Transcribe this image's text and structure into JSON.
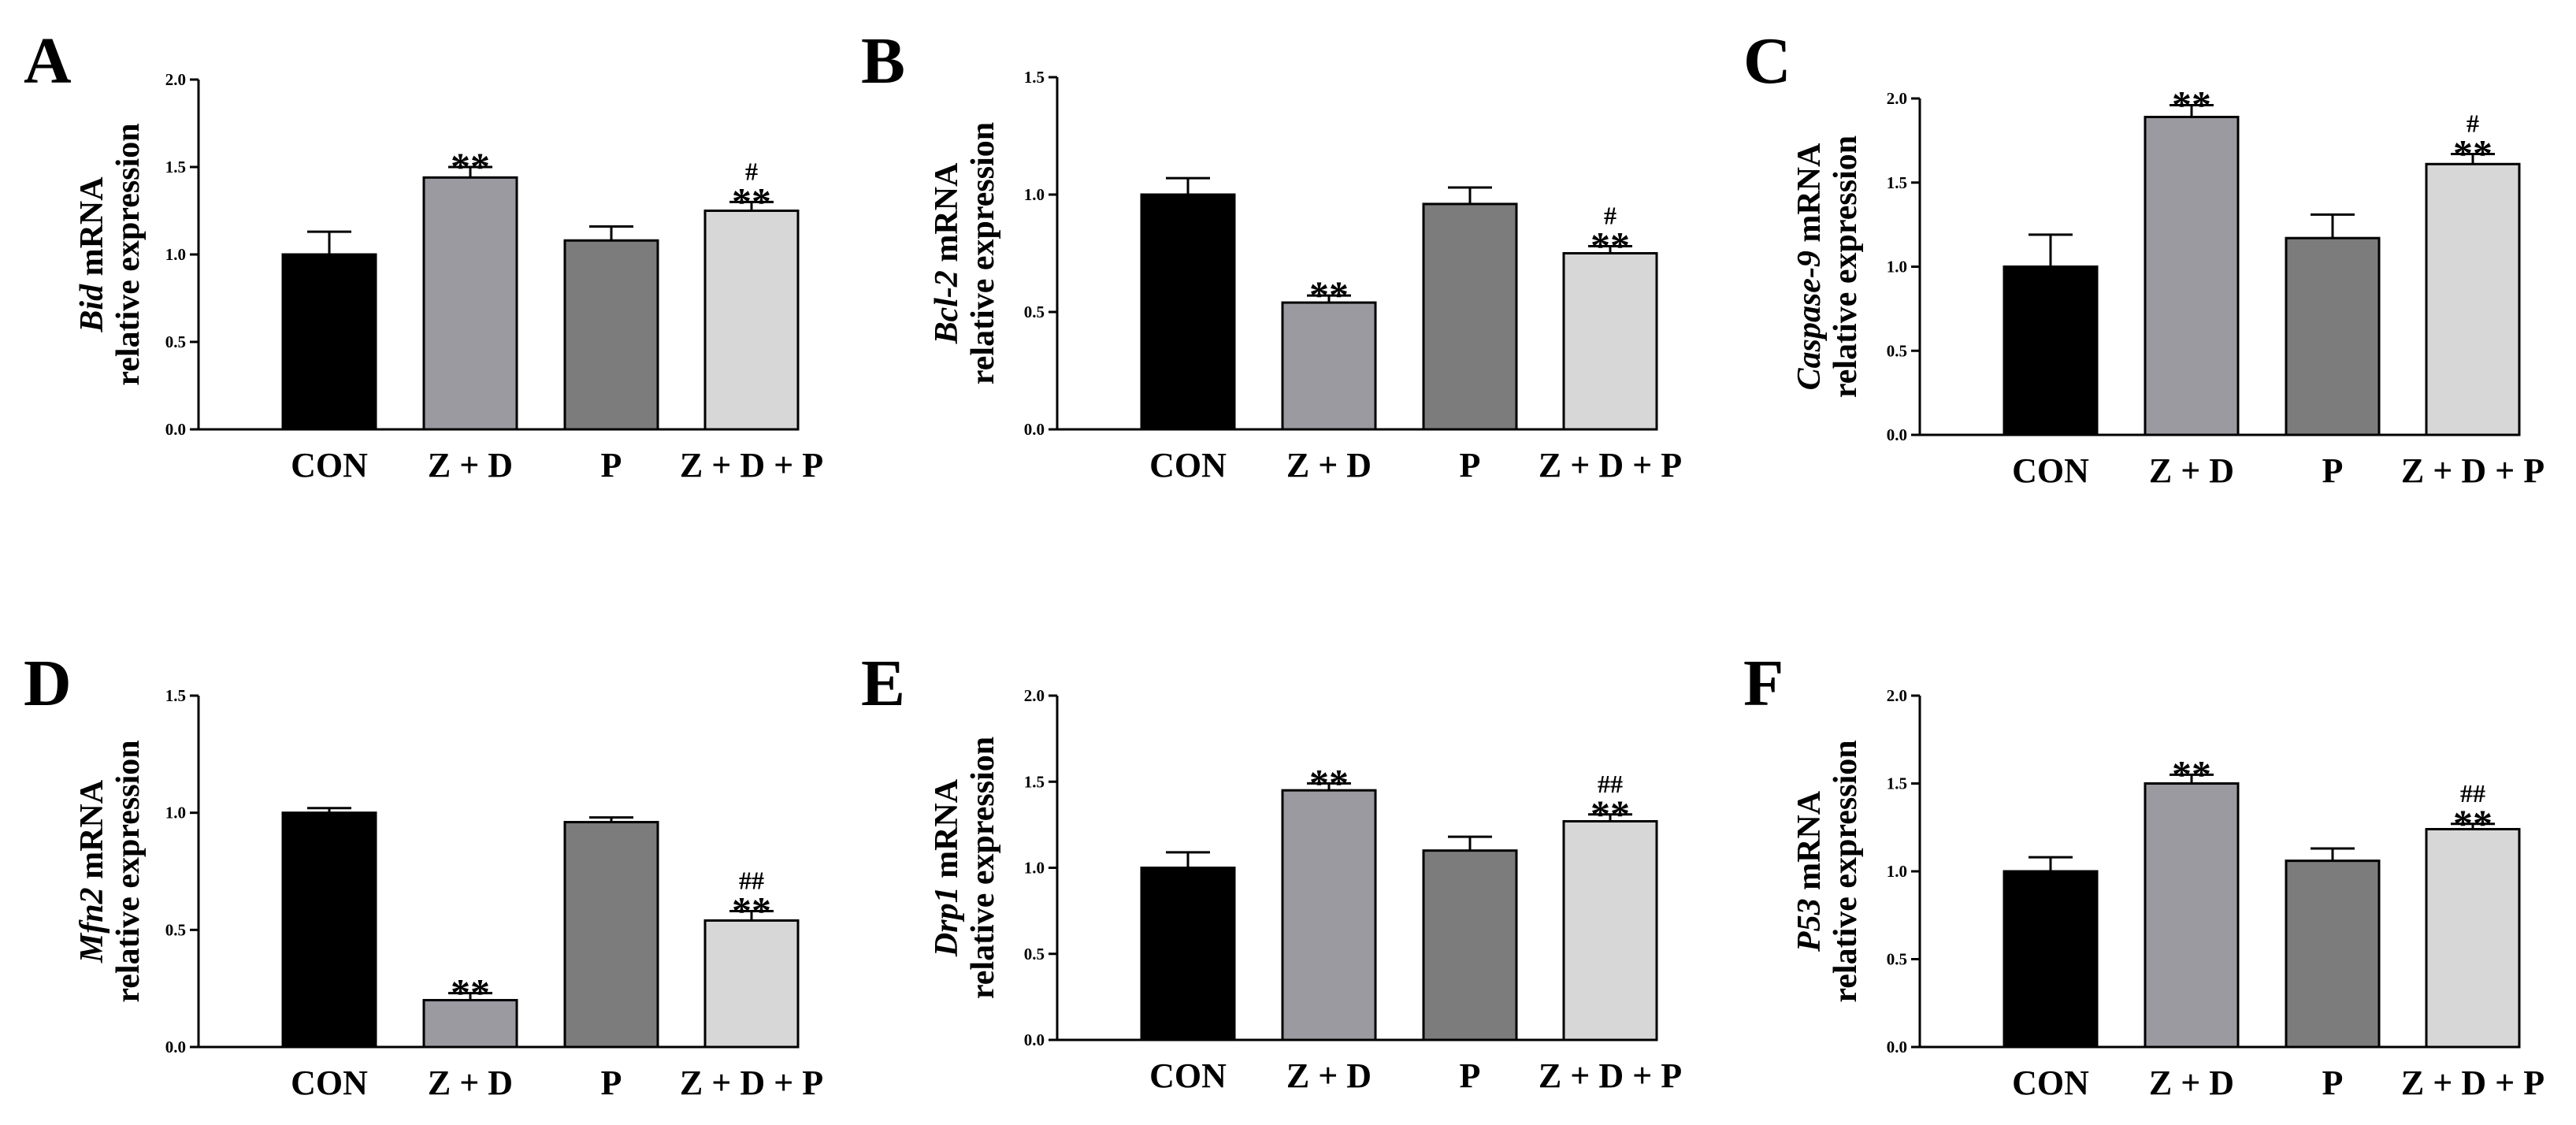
{
  "figure": {
    "ylabel_suffix": " mRNA",
    "ylabel_line2": "relative expression"
  },
  "colors": {
    "bars": [
      "#000000",
      "#9b9aa1",
      "#7c7c7c",
      "#d7d7d7"
    ],
    "axis": "#000000"
  },
  "chart_data": [
    {
      "type": "bar",
      "panel": "A",
      "gene": "Bid",
      "title": "",
      "xlabel": "",
      "ylabel": "Bid mRNA relative expression",
      "categories": [
        "CON",
        "Z + D",
        "P",
        "Z + D + P"
      ],
      "values": [
        1.0,
        1.44,
        1.08,
        1.25
      ],
      "errors": [
        0.13,
        0.06,
        0.08,
        0.05
      ],
      "annotations": [
        "",
        "**",
        "",
        "**"
      ],
      "hash_marks": [
        "",
        "",
        "",
        "#"
      ],
      "ylim": [
        0,
        2.0
      ],
      "ticks": [
        "0.0",
        "0.5",
        "1.0",
        "1.5",
        "2.0"
      ],
      "tick_values": [
        0,
        0.5,
        1.0,
        1.5,
        2.0
      ]
    },
    {
      "type": "bar",
      "panel": "B",
      "gene": "Bcl-2",
      "title": "",
      "xlabel": "",
      "ylabel": "Bcl-2 mRNA relative expression",
      "categories": [
        "CON",
        "Z + D",
        "P",
        "Z + D + P"
      ],
      "values": [
        1.0,
        0.54,
        0.96,
        0.75
      ],
      "errors": [
        0.07,
        0.03,
        0.07,
        0.03
      ],
      "annotations": [
        "",
        "**",
        "",
        "**"
      ],
      "hash_marks": [
        "",
        "",
        "",
        "#"
      ],
      "ylim": [
        0,
        1.5
      ],
      "ticks": [
        "0.0",
        "0.5",
        "1.0",
        "1.5"
      ],
      "tick_values": [
        0,
        0.5,
        1.0,
        1.5
      ]
    },
    {
      "type": "bar",
      "panel": "C",
      "gene": "Caspase-9",
      "title": "",
      "xlabel": "",
      "ylabel": "Caspase-9 mRNA relative expression",
      "categories": [
        "CON",
        "Z + D",
        "P",
        "Z + D + P"
      ],
      "values": [
        1.0,
        1.89,
        1.17,
        1.61
      ],
      "errors": [
        0.19,
        0.07,
        0.14,
        0.06
      ],
      "annotations": [
        "",
        "**",
        "",
        "**"
      ],
      "hash_marks": [
        "",
        "",
        "",
        "#"
      ],
      "ylim": [
        0,
        2.0
      ],
      "ticks": [
        "0.0",
        "0.5",
        "1.0",
        "1.5",
        "2.0"
      ],
      "tick_values": [
        0,
        0.5,
        1.0,
        1.5,
        2.0
      ]
    },
    {
      "type": "bar",
      "panel": "D",
      "gene": "Mfn2",
      "title": "",
      "xlabel": "",
      "ylabel": "Mfn2 mRNA relative expression",
      "categories": [
        "CON",
        "Z + D",
        "P",
        "Z + D + P"
      ],
      "values": [
        1.0,
        0.2,
        0.96,
        0.54
      ],
      "errors": [
        0.02,
        0.03,
        0.02,
        0.04
      ],
      "annotations": [
        "",
        "**",
        "",
        "**"
      ],
      "hash_marks": [
        "",
        "",
        "",
        "##"
      ],
      "ylim": [
        0,
        1.5
      ],
      "ticks": [
        "0.0",
        "0.5",
        "1.0",
        "1.5"
      ],
      "tick_values": [
        0,
        0.5,
        1.0,
        1.5
      ]
    },
    {
      "type": "bar",
      "panel": "E",
      "gene": "Drp1",
      "title": "",
      "xlabel": "",
      "ylabel": "Drp1 mRNA relative expression",
      "categories": [
        "CON",
        "Z + D",
        "P",
        "Z + D + P"
      ],
      "values": [
        1.0,
        1.45,
        1.1,
        1.27
      ],
      "errors": [
        0.09,
        0.04,
        0.08,
        0.04
      ],
      "annotations": [
        "",
        "**",
        "",
        "**"
      ],
      "hash_marks": [
        "",
        "",
        "",
        "##"
      ],
      "ylim": [
        0,
        2.0
      ],
      "ticks": [
        "0.0",
        "0.5",
        "1.0",
        "1.5",
        "2.0"
      ],
      "tick_values": [
        0,
        0.5,
        1.0,
        1.5,
        2.0
      ]
    },
    {
      "type": "bar",
      "panel": "F",
      "gene": "P53",
      "title": "",
      "xlabel": "",
      "ylabel": "P53 mRNA relative expression",
      "categories": [
        "CON",
        "Z + D",
        "P",
        "Z + D + P"
      ],
      "values": [
        1.0,
        1.5,
        1.06,
        1.24
      ],
      "errors": [
        0.08,
        0.05,
        0.07,
        0.03
      ],
      "annotations": [
        "",
        "**",
        "",
        "**"
      ],
      "hash_marks": [
        "",
        "",
        "",
        "##"
      ],
      "ylim": [
        0,
        2.0
      ],
      "ticks": [
        "0.0",
        "0.5",
        "1.0",
        "1.5",
        "2.0"
      ],
      "tick_values": [
        0,
        0.5,
        1.0,
        1.5,
        2.0
      ]
    }
  ]
}
